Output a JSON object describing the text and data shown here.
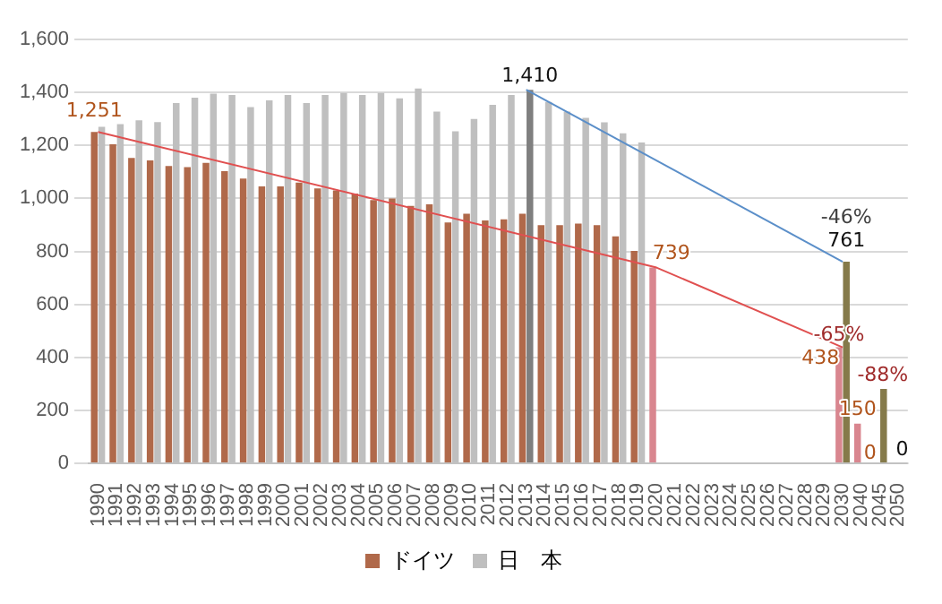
{
  "chart_data": {
    "type": "bar",
    "categories": [
      "1990",
      "1991",
      "1992",
      "1993",
      "1994",
      "1995",
      "1996",
      "1997",
      "1998",
      "1999",
      "2000",
      "2001",
      "2002",
      "2003",
      "2004",
      "2005",
      "2006",
      "2007",
      "2008",
      "2009",
      "2010",
      "2011",
      "2012",
      "2013",
      "2014",
      "2015",
      "2016",
      "2017",
      "2018",
      "2019",
      "2020",
      "2021",
      "2022",
      "2023",
      "2024",
      "2025",
      "2026",
      "2027",
      "2028",
      "2029",
      "2030",
      "2040",
      "2045",
      "2050"
    ],
    "series": [
      {
        "name": "ドイツ",
        "color": "#b0694a",
        "colors": [
          "#b0694a",
          "#b0694a",
          "#b0694a",
          "#b0694a",
          "#b0694a",
          "#b0694a",
          "#b0694a",
          "#b0694a",
          "#b0694a",
          "#b0694a",
          "#b0694a",
          "#b0694a",
          "#b0694a",
          "#b0694a",
          "#b0694a",
          "#b0694a",
          "#b0694a",
          "#b0694a",
          "#b0694a",
          "#b0694a",
          "#b0694a",
          "#b0694a",
          "#b0694a",
          "#b0694a",
          "#b0694a",
          "#b0694a",
          "#b0694a",
          "#b0694a",
          "#b0694a",
          "#b0694a",
          "#d9868f",
          "#d9868f",
          "#d9868f",
          "#d9868f",
          "#d9868f",
          "#d9868f",
          "#d9868f",
          "#d9868f",
          "#d9868f",
          "#d9868f",
          "#d9868f",
          "#d9868f",
          "#d9868f",
          "#d9868f"
        ],
        "values": [
          1251,
          1204,
          1153,
          1143,
          1122,
          1118,
          1134,
          1103,
          1075,
          1045,
          1045,
          1060,
          1038,
          1030,
          1018,
          994,
          1000,
          972,
          978,
          909,
          942,
          917,
          921,
          942,
          899,
          899,
          905,
          899,
          857,
          802,
          739,
          null,
          null,
          null,
          null,
          null,
          null,
          null,
          null,
          null,
          438,
          150,
          0,
          null
        ],
        "value_labels": [
          "1,251",
          null,
          null,
          null,
          null,
          null,
          null,
          null,
          null,
          null,
          null,
          null,
          null,
          null,
          null,
          null,
          null,
          null,
          null,
          null,
          null,
          null,
          null,
          null,
          null,
          null,
          null,
          null,
          null,
          null,
          "739",
          null,
          null,
          null,
          null,
          null,
          null,
          null,
          null,
          null,
          "438",
          "150",
          "0",
          null
        ]
      },
      {
        "name": "日　本",
        "color": "#bfbfbf",
        "colors": [
          "#bfbfbf",
          "#bfbfbf",
          "#bfbfbf",
          "#bfbfbf",
          "#bfbfbf",
          "#bfbfbf",
          "#bfbfbf",
          "#bfbfbf",
          "#bfbfbf",
          "#bfbfbf",
          "#bfbfbf",
          "#bfbfbf",
          "#bfbfbf",
          "#bfbfbf",
          "#bfbfbf",
          "#bfbfbf",
          "#bfbfbf",
          "#bfbfbf",
          "#bfbfbf",
          "#bfbfbf",
          "#bfbfbf",
          "#bfbfbf",
          "#bfbfbf",
          "#7f7f7f",
          "#bfbfbf",
          "#bfbfbf",
          "#bfbfbf",
          "#bfbfbf",
          "#bfbfbf",
          "#bfbfbf",
          "#bfbfbf",
          "#bfbfbf",
          "#bfbfbf",
          "#bfbfbf",
          "#bfbfbf",
          "#bfbfbf",
          "#bfbfbf",
          "#bfbfbf",
          "#bfbfbf",
          "#bfbfbf",
          "#857a4a",
          "#857a4a",
          "#857a4a",
          "#857a4a"
        ],
        "values": [
          1270,
          1280,
          1295,
          1288,
          1360,
          1380,
          1395,
          1390,
          1345,
          1370,
          1390,
          1360,
          1390,
          1398,
          1390,
          1398,
          1378,
          1415,
          1328,
          1253,
          1300,
          1353,
          1390,
          1410,
          1364,
          1328,
          1304,
          1287,
          1246,
          1211,
          null,
          null,
          null,
          null,
          null,
          null,
          null,
          null,
          null,
          null,
          761,
          null,
          281,
          0
        ],
        "value_labels": [
          null,
          null,
          null,
          null,
          null,
          null,
          null,
          null,
          null,
          null,
          null,
          null,
          null,
          null,
          null,
          null,
          null,
          null,
          null,
          null,
          null,
          null,
          null,
          "1,410",
          null,
          null,
          null,
          null,
          null,
          null,
          null,
          null,
          null,
          null,
          null,
          null,
          null,
          null,
          null,
          null,
          "761",
          null,
          null,
          "0"
        ]
      },
      {
        "type": "line",
        "color": "#e05050",
        "values": [
          1251,
          null,
          null,
          null,
          null,
          null,
          null,
          null,
          null,
          null,
          null,
          null,
          null,
          null,
          null,
          null,
          null,
          null,
          null,
          null,
          null,
          null,
          null,
          null,
          null,
          null,
          null,
          null,
          null,
          null,
          739,
          null,
          null,
          null,
          null,
          null,
          null,
          null,
          null,
          null,
          438,
          null,
          null,
          null
        ]
      },
      {
        "type": "line",
        "color": "#5b8fc9",
        "values": [
          null,
          null,
          null,
          null,
          null,
          null,
          null,
          null,
          null,
          null,
          null,
          null,
          null,
          null,
          null,
          null,
          null,
          null,
          null,
          null,
          null,
          null,
          null,
          1410,
          null,
          null,
          null,
          null,
          null,
          null,
          null,
          null,
          null,
          null,
          null,
          null,
          null,
          null,
          null,
          null,
          761,
          null,
          null,
          null
        ]
      }
    ],
    "annotations": [
      {
        "text": "-46%",
        "x": "2030",
        "y": 761
      },
      {
        "text": "-65%",
        "x": "2030",
        "y": 438
      },
      {
        "text": "-88%",
        "x": "2040",
        "y": 150
      }
    ],
    "ylim": [
      0,
      1600
    ],
    "yticks": [
      {
        "value": 0,
        "label": "0"
      },
      {
        "value": 200,
        "label": "200"
      },
      {
        "value": 400,
        "label": "400"
      },
      {
        "value": 600,
        "label": "600"
      },
      {
        "value": 800,
        "label": "800"
      },
      {
        "value": 1000,
        "label": "1,000"
      },
      {
        "value": 1200,
        "label": "1,200"
      },
      {
        "value": 1400,
        "label": "1,400"
      },
      {
        "value": 1600,
        "label": "1,600"
      }
    ],
    "grid": "y",
    "legend": "bottom"
  }
}
